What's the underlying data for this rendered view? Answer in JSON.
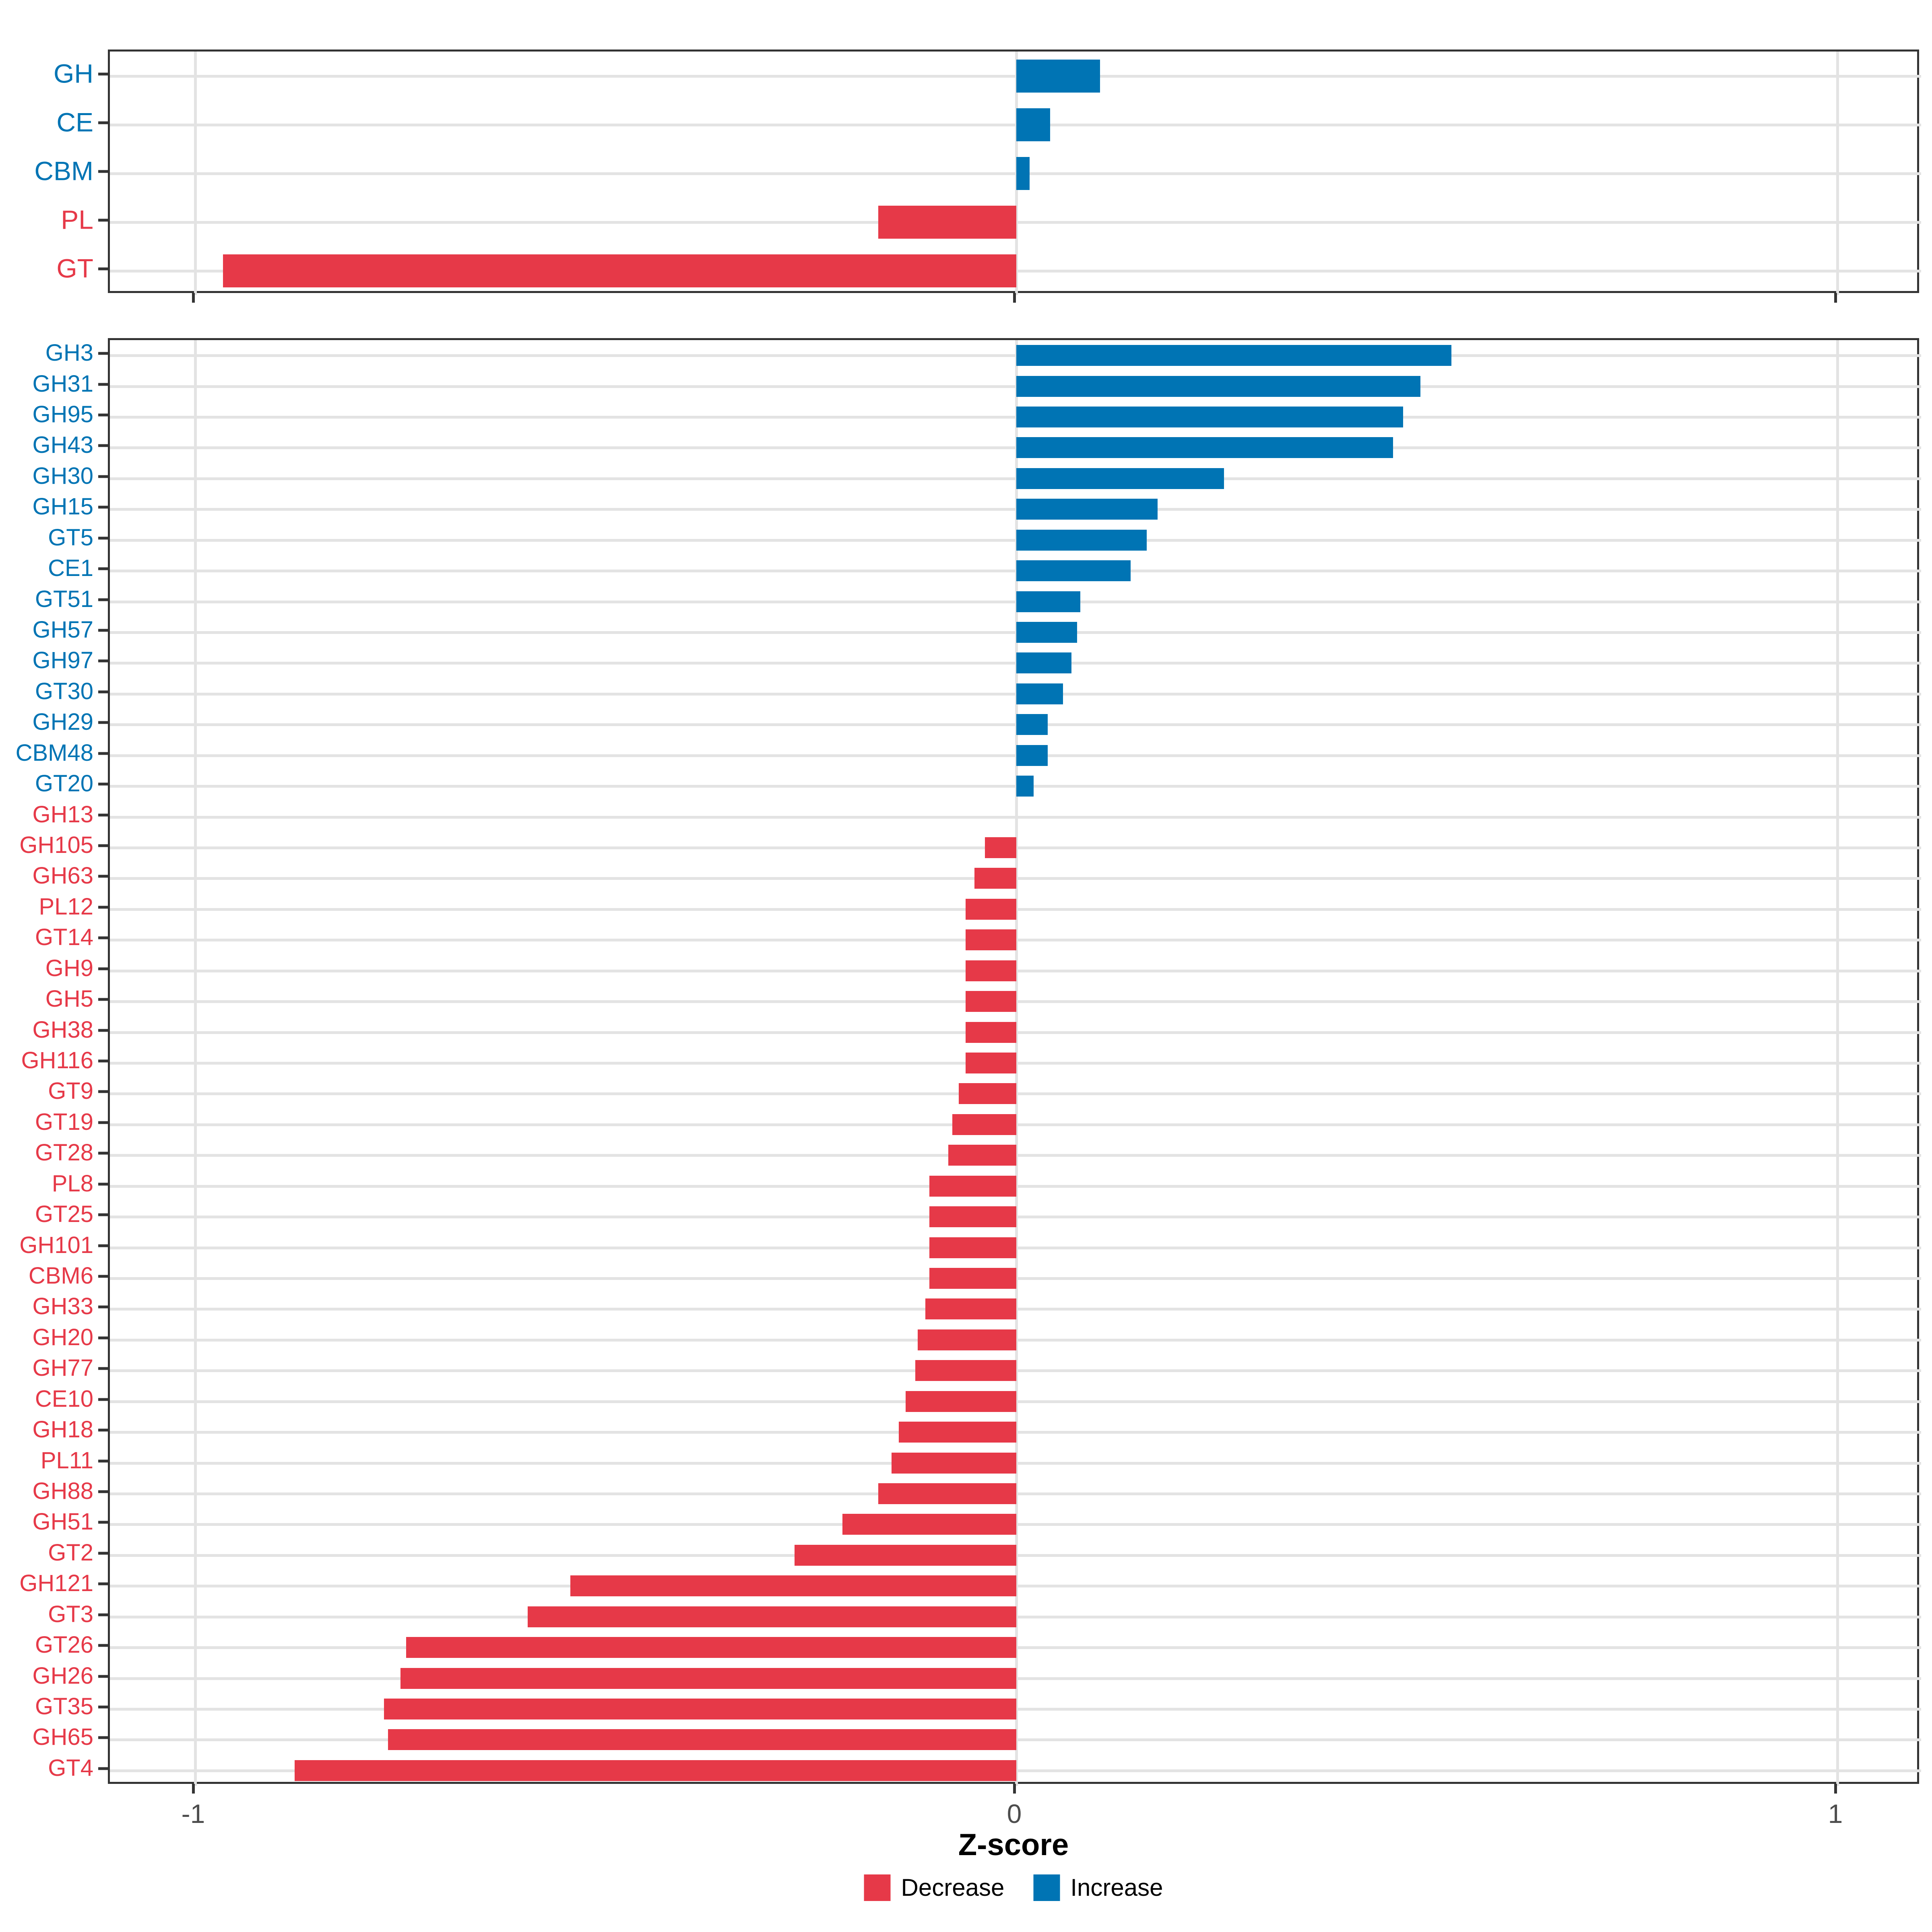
{
  "axis": {
    "title": "Z-score",
    "ticks": [
      {
        "value": -1,
        "label": "-1"
      },
      {
        "value": 0,
        "label": "0"
      },
      {
        "value": 1,
        "label": "1"
      }
    ],
    "xlim": [
      -1.1,
      1.1
    ]
  },
  "legend": {
    "items": [
      {
        "label": "Decrease",
        "color": "#e63948"
      },
      {
        "label": "Increase",
        "color": "#0074b4"
      }
    ]
  },
  "colors": {
    "increase": "#0074b4",
    "decrease": "#e63948",
    "grid": "#e3e3e3",
    "axis_text": "#4d4d4d",
    "panel_border": "#333333",
    "tick": "#333333",
    "background": "#ffffff"
  },
  "chart_data": [
    {
      "type": "bar",
      "orientation": "horizontal",
      "panel": "class",
      "title": "",
      "xlabel": "Z-score",
      "xlim": [
        -1.1,
        1.1
      ],
      "grid": "major-x-and-y",
      "legend_position": "bottom",
      "categories": [
        "GH",
        "CE",
        "CBM",
        "PL",
        "GT"
      ],
      "values": [
        0.102,
        0.041,
        0.016,
        -0.168,
        -0.966
      ]
    },
    {
      "type": "bar",
      "orientation": "horizontal",
      "panel": "family",
      "title": "",
      "xlabel": "Z-score",
      "xlim": [
        -1.1,
        1.1
      ],
      "grid": "major-x-and-y",
      "legend_position": "bottom",
      "categories": [
        "GH3",
        "GH31",
        "GH95",
        "GH43",
        "GH30",
        "GH15",
        "GT5",
        "CE1",
        "GT51",
        "GH57",
        "GH97",
        "GT30",
        "GH29",
        "CBM48",
        "GT20",
        "GH13",
        "GH105",
        "GH63",
        "PL12",
        "GT14",
        "GH9",
        "GH5",
        "GH38",
        "GH116",
        "GT9",
        "GT19",
        "GT28",
        "PL8",
        "GT25",
        "GH101",
        "CBM6",
        "GH33",
        "GH20",
        "GH77",
        "CE10",
        "GH18",
        "PL11",
        "GH88",
        "GH51",
        "GT2",
        "GH121",
        "GT3",
        "GT26",
        "GH26",
        "GT35",
        "GH65",
        "GT4"
      ],
      "values": [
        0.53,
        0.492,
        0.471,
        0.459,
        0.253,
        0.172,
        0.159,
        0.139,
        0.078,
        0.074,
        0.067,
        0.057,
        0.038,
        0.038,
        0.021,
        0.0,
        -0.038,
        -0.051,
        -0.062,
        -0.062,
        -0.062,
        -0.062,
        -0.062,
        -0.062,
        -0.07,
        -0.078,
        -0.083,
        -0.106,
        -0.106,
        -0.106,
        -0.106,
        -0.111,
        -0.12,
        -0.123,
        -0.135,
        -0.143,
        -0.152,
        -0.168,
        -0.212,
        -0.27,
        -0.543,
        -0.595,
        -0.743,
        -0.75,
        -0.77,
        -0.765,
        -0.879
      ]
    }
  ]
}
